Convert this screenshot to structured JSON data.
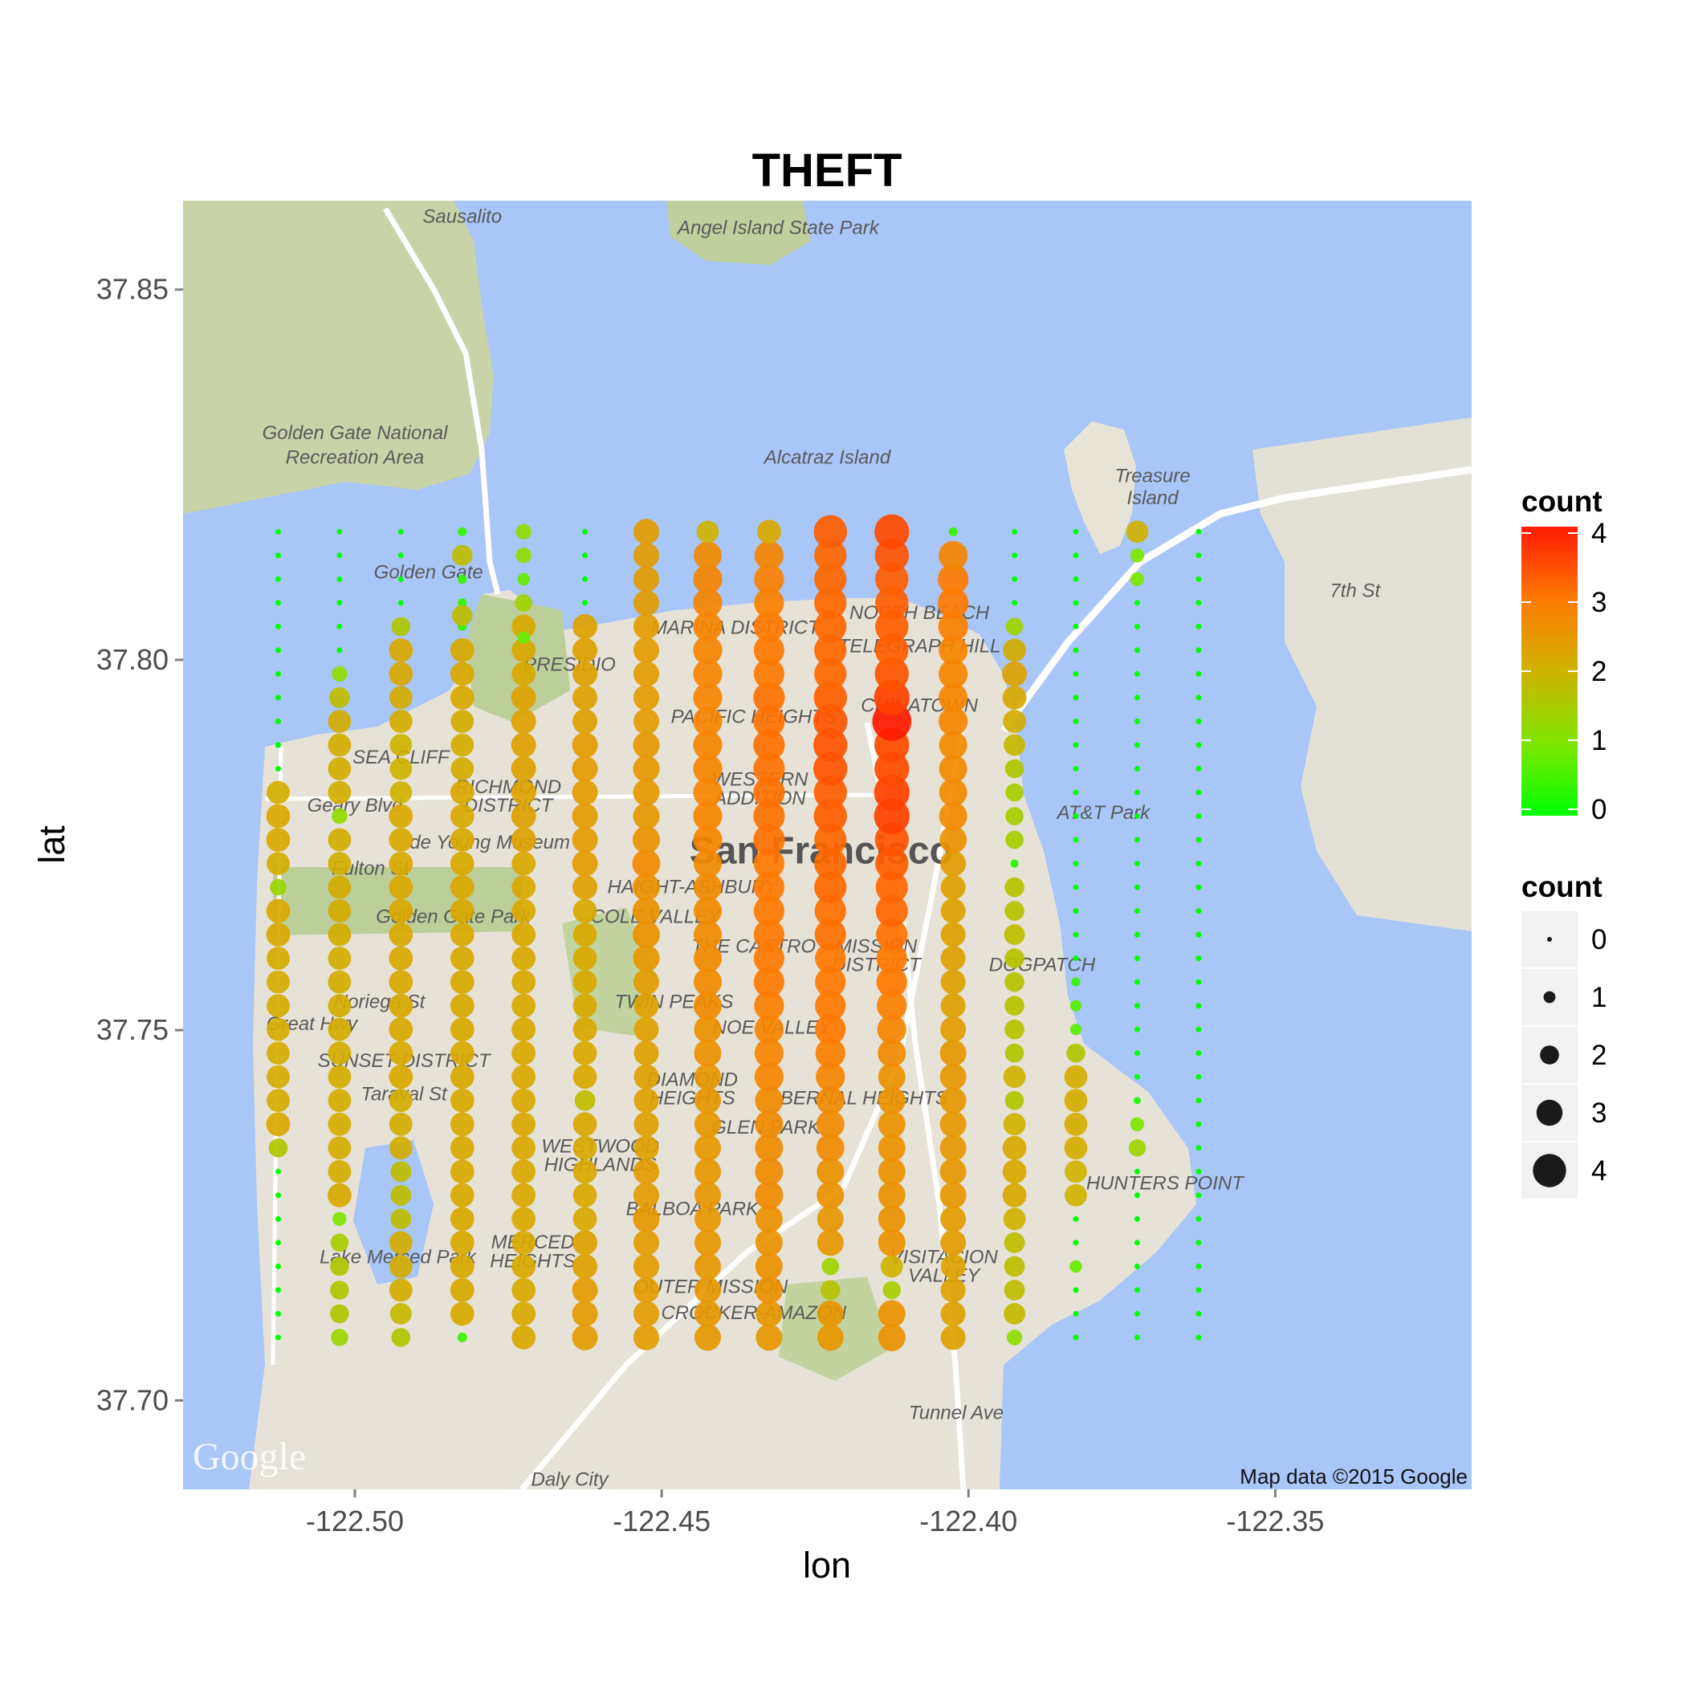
{
  "chart_data": {
    "type": "scatter",
    "title": "THEFT",
    "xlabel": "lon",
    "ylabel": "lat",
    "xlim": [
      -122.528,
      -122.318
    ],
    "ylim": [
      37.688,
      37.862
    ],
    "x_ticks": [
      -122.5,
      -122.45,
      -122.4,
      -122.35
    ],
    "x_tick_labels": [
      "-122.50",
      "-122.45",
      "-122.40",
      "-122.35"
    ],
    "y_ticks": [
      37.7,
      37.75,
      37.8,
      37.85
    ],
    "y_tick_labels": [
      "37.70",
      "37.75",
      "37.80",
      "37.85"
    ],
    "grid_lat_start": 37.7085,
    "grid_lat_step": 0.0032,
    "grid_lat_count": 35,
    "columns": [
      {
        "lon": -122.5125,
        "counts": [
          0,
          0,
          0,
          0,
          0,
          0,
          0,
          0,
          1.6,
          2.2,
          2.1,
          2.1,
          2.1,
          2.1,
          2.1,
          2.1,
          2.1,
          2.2,
          2.2,
          1.3,
          2.1,
          2.2,
          2.2,
          2.1,
          0,
          0,
          0,
          0,
          0,
          0,
          0,
          0,
          0,
          0,
          0
        ]
      },
      {
        "lon": -122.5025,
        "counts": [
          1.4,
          1.6,
          1.6,
          1.6,
          1.5,
          1.0,
          2.2,
          2.1,
          2.1,
          2.1,
          2.1,
          2.1,
          2.1,
          2.1,
          2.1,
          2.1,
          2.1,
          2.1,
          2.1,
          2.1,
          2.1,
          2.1,
          1.2,
          2.1,
          2.1,
          2.1,
          2.1,
          1.8,
          1.2,
          0,
          0,
          0,
          0,
          0,
          0
        ]
      },
      {
        "lon": -122.4925,
        "counts": [
          1.6,
          1.9,
          2.1,
          2.1,
          2.1,
          1.8,
          1.8,
          1.8,
          2.1,
          2.1,
          2.1,
          2.2,
          2.2,
          2.2,
          2.2,
          2.2,
          2.2,
          2.2,
          2.2,
          2.2,
          2.2,
          2.2,
          2.2,
          2.0,
          2.0,
          2.0,
          2.1,
          2.1,
          2.2,
          2.2,
          1.6,
          0,
          0,
          0,
          0
        ]
      },
      {
        "lon": -122.4825,
        "counts": [
          0.5,
          2.2,
          2.2,
          2.2,
          2.2,
          2.2,
          2.2,
          2.2,
          2.2,
          2.2,
          2.2,
          2.2,
          2.2,
          2.2,
          2.2,
          2.2,
          2.2,
          2.2,
          2.2,
          2.2,
          2.2,
          2.2,
          2.2,
          2.2,
          2.1,
          2.1,
          2.1,
          2.2,
          2.2,
          2.2,
          0.4,
          0.4,
          0.4,
          1.8,
          0.4
        ]
      },
      {
        "lon": -122.4725,
        "counts": [
          2.2,
          2.2,
          2.2,
          2.2,
          2.2,
          2.2,
          2.2,
          2.2,
          2.2,
          2.2,
          2.2,
          2.2,
          2.2,
          2.2,
          2.2,
          2.2,
          2.2,
          2.2,
          2.2,
          2.2,
          2.2,
          2.3,
          2.3,
          2.3,
          2.3,
          2.3,
          2.3,
          2.3,
          2.2,
          2.2,
          2.2,
          1.4,
          0.8,
          1.2,
          1.2
        ]
      },
      {
        "lon": -122.4625,
        "counts": [
          2.4,
          2.4,
          2.4,
          2.3,
          2.3,
          2.2,
          2.2,
          2.2,
          2.2,
          2.2,
          1.8,
          2.2,
          2.2,
          2.2,
          2.2,
          2.2,
          2.2,
          2.2,
          2.2,
          2.3,
          2.4,
          2.4,
          2.4,
          2.4,
          2.4,
          2.4,
          2.3,
          2.3,
          2.3,
          2.3,
          2.3,
          0,
          0,
          0,
          0
        ]
      },
      {
        "lon": -122.4525,
        "counts": [
          2.4,
          2.4,
          2.4,
          2.4,
          2.4,
          2.5,
          2.4,
          2.4,
          2.3,
          2.3,
          2.3,
          2.3,
          2.3,
          2.3,
          2.3,
          2.4,
          2.5,
          2.6,
          2.6,
          2.6,
          2.7,
          2.6,
          2.5,
          2.5,
          2.5,
          2.5,
          2.4,
          2.4,
          2.4,
          2.4,
          2.4,
          2.4,
          2.4,
          2.4,
          2.4
        ]
      },
      {
        "lon": -122.4425,
        "counts": [
          2.5,
          2.5,
          2.5,
          2.5,
          2.5,
          2.5,
          2.5,
          2.5,
          2.5,
          2.5,
          2.5,
          2.5,
          2.6,
          2.6,
          2.7,
          2.7,
          2.7,
          2.7,
          2.7,
          2.7,
          2.7,
          2.8,
          2.8,
          2.8,
          2.8,
          2.8,
          2.8,
          2.8,
          2.8,
          2.8,
          2.8,
          2.8,
          2.8,
          2.7,
          2.0
        ]
      },
      {
        "lon": -122.4325,
        "counts": [
          2.5,
          2.5,
          2.6,
          2.6,
          2.6,
          2.6,
          2.7,
          2.7,
          2.7,
          2.7,
          2.7,
          2.8,
          2.8,
          2.8,
          2.9,
          3.0,
          3.0,
          3.0,
          3.0,
          3.0,
          3.0,
          3.1,
          3.1,
          3.1,
          3.1,
          3.1,
          3.1,
          3.1,
          3.0,
          3.0,
          3.0,
          2.9,
          2.9,
          2.8,
          2.2
        ]
      },
      {
        "lon": -122.4225,
        "counts": [
          2.5,
          2.5,
          1.7,
          1.4,
          2.5,
          2.5,
          2.6,
          2.6,
          2.7,
          2.7,
          2.7,
          2.8,
          2.9,
          3.0,
          3.0,
          3.0,
          3.0,
          3.1,
          3.1,
          3.2,
          3.2,
          3.2,
          3.3,
          3.3,
          3.4,
          3.4,
          3.4,
          3.3,
          3.2,
          3.2,
          3.2,
          3.2,
          3.2,
          3.2,
          3.3
        ]
      },
      {
        "lon": -122.4125,
        "counts": [
          2.6,
          2.6,
          1.5,
          2.0,
          2.6,
          2.6,
          2.6,
          2.6,
          2.6,
          2.6,
          2.6,
          2.6,
          2.7,
          2.8,
          2.9,
          3.0,
          3.0,
          3.1,
          3.2,
          3.2,
          3.3,
          3.4,
          3.6,
          3.6,
          3.5,
          3.5,
          4.0,
          3.6,
          3.4,
          3.3,
          3.3,
          3.3,
          3.3,
          3.4,
          3.5
        ]
      },
      {
        "lon": -122.4025,
        "counts": [
          2.3,
          2.3,
          2.3,
          2.3,
          2.4,
          2.4,
          2.5,
          2.5,
          2.5,
          2.5,
          2.5,
          2.5,
          2.5,
          2.4,
          2.3,
          2.3,
          2.3,
          2.3,
          2.3,
          2.3,
          2.4,
          2.6,
          2.7,
          2.7,
          2.7,
          2.7,
          2.8,
          2.8,
          2.8,
          2.8,
          2.9,
          3.0,
          3.0,
          2.8,
          0.4
        ]
      },
      {
        "lon": -122.3925,
        "counts": [
          1.2,
          1.9,
          1.8,
          1.8,
          1.8,
          2.0,
          2.2,
          2.2,
          2.2,
          2.0,
          1.6,
          2.0,
          1.6,
          1.7,
          1.7,
          1.7,
          1.7,
          1.8,
          1.7,
          1.7,
          0.3,
          1.5,
          1.5,
          1.5,
          1.6,
          1.9,
          2.1,
          2.2,
          2.3,
          2.1,
          1.4,
          0,
          0,
          0,
          0
        ]
      },
      {
        "lon": -122.3825,
        "counts": [
          0,
          0,
          0,
          0.8,
          0,
          0,
          2.0,
          2.0,
          2.1,
          2.1,
          2.1,
          2.1,
          1.6,
          0.7,
          0.7,
          0.4,
          0,
          0,
          0,
          0,
          0,
          0,
          0,
          0,
          0,
          0,
          0,
          0,
          0,
          0,
          0,
          0,
          0,
          0,
          0
        ]
      },
      {
        "lon": -122.3725,
        "counts": [
          0,
          0,
          0,
          0,
          0,
          0,
          0,
          0,
          1.4,
          1.0,
          0.2,
          0,
          0,
          0,
          0,
          0,
          0,
          0,
          0,
          0,
          0,
          0,
          0,
          0,
          0,
          0,
          0,
          0,
          0,
          0,
          0,
          0,
          1.0,
          1.0,
          2.0
        ]
      },
      {
        "lon": -122.3625,
        "counts": [
          0,
          0,
          0,
          0,
          0,
          0,
          0,
          0,
          0,
          0,
          0,
          0,
          0,
          0,
          0,
          0,
          0,
          0,
          0,
          0,
          0,
          0,
          0,
          0,
          0,
          0,
          0,
          0,
          0,
          0,
          0,
          0,
          0,
          0,
          0
        ]
      }
    ],
    "extra_points": [
      {
        "lon": -122.4825,
        "lat": 37.806,
        "count": 1.8
      },
      {
        "lon": -122.4725,
        "lat": 37.803,
        "count": 0.8
      }
    ],
    "color_scale": {
      "low": "#00ff00",
      "high": "#ff0000",
      "limits": [
        0,
        4
      ]
    },
    "size_breaks": [
      0,
      1,
      2,
      3,
      4
    ],
    "legend": {
      "color_title": "count",
      "size_title": "count",
      "color_labels": [
        "4",
        "3",
        "2",
        "1",
        "0"
      ],
      "size_labels": [
        "0",
        "1",
        "2",
        "3",
        "4"
      ],
      "position": "right"
    },
    "grid": false
  },
  "map": {
    "attribution": "Map data ©2015 Google",
    "logo": "Google",
    "labels": [
      {
        "text": "Sausalito",
        "lon": -122.4825,
        "lat": 37.859
      },
      {
        "text": "Angel Island State Park",
        "lon": -122.431,
        "lat": 37.8575
      },
      {
        "text": "Golden Gate National",
        "lon": -122.5,
        "lat": 37.8298
      },
      {
        "text": "Recreation Area",
        "lon": -122.5,
        "lat": 37.8265
      },
      {
        "text": "Alcatraz Island",
        "lon": -122.423,
        "lat": 37.8265
      },
      {
        "text": "Treasure",
        "lon": -122.37,
        "lat": 37.824
      },
      {
        "text": "Island",
        "lon": -122.37,
        "lat": 37.821
      },
      {
        "text": "Golden Gate",
        "lon": -122.488,
        "lat": 37.811
      },
      {
        "text": "MARINA DISTRICT",
        "lon": -122.438,
        "lat": 37.8035
      },
      {
        "text": "PRESIDIO",
        "lon": -122.465,
        "lat": 37.7985
      },
      {
        "text": "PACIFIC HEIGHTS",
        "lon": -122.435,
        "lat": 37.7915
      },
      {
        "text": "NORTH BEACH",
        "lon": -122.408,
        "lat": 37.8055
      },
      {
        "text": "TELEGRAPH HILL",
        "lon": -122.408,
        "lat": 37.801
      },
      {
        "text": "CHINATOWN",
        "lon": -122.408,
        "lat": 37.793
      },
      {
        "text": "SEA CLIFF",
        "lon": -122.4925,
        "lat": 37.786
      },
      {
        "text": "RICHMOND",
        "lon": -122.475,
        "lat": 37.782
      },
      {
        "text": "DISTRICT",
        "lon": -122.475,
        "lat": 37.7795
      },
      {
        "text": "WESTERN",
        "lon": -122.434,
        "lat": 37.783
      },
      {
        "text": "ADDITION",
        "lon": -122.434,
        "lat": 37.7805
      },
      {
        "text": "Geary Blvd",
        "lon": -122.5,
        "lat": 37.7795
      },
      {
        "text": "de Young Museum",
        "lon": -122.478,
        "lat": 37.7745
      },
      {
        "text": "Fulton St",
        "lon": -122.4975,
        "lat": 37.771
      },
      {
        "text": "Golden Gate Park",
        "lon": -122.484,
        "lat": 37.7645
      },
      {
        "text": "HAIGHT-ASHBURY",
        "lon": -122.445,
        "lat": 37.7685
      },
      {
        "text": "COLE VALLEY",
        "lon": -122.451,
        "lat": 37.7645
      },
      {
        "text": "THE CASTRO",
        "lon": -122.435,
        "lat": 37.7605
      },
      {
        "text": "MISSION",
        "lon": -122.415,
        "lat": 37.7605
      },
      {
        "text": "DISTRICT",
        "lon": -122.415,
        "lat": 37.758
      },
      {
        "text": "DOGPATCH",
        "lon": -122.388,
        "lat": 37.758
      },
      {
        "text": "TWIN PEAKS",
        "lon": -122.448,
        "lat": 37.753
      },
      {
        "text": "NOE VALLEY",
        "lon": -122.432,
        "lat": 37.7495
      },
      {
        "text": "Noriega St",
        "lon": -122.496,
        "lat": 37.753
      },
      {
        "text": "SUNSET DISTRICT",
        "lon": -122.492,
        "lat": 37.745
      },
      {
        "text": "Taraval St",
        "lon": -122.492,
        "lat": 37.7405
      },
      {
        "text": "DIAMOND",
        "lon": -122.445,
        "lat": 37.7425
      },
      {
        "text": "HEIGHTS",
        "lon": -122.445,
        "lat": 37.74
      },
      {
        "text": "BERNAL HEIGHTS",
        "lon": -122.417,
        "lat": 37.74
      },
      {
        "text": "GLEN PARK",
        "lon": -122.433,
        "lat": 37.736
      },
      {
        "text": "WESTWOOD",
        "lon": -122.46,
        "lat": 37.7335
      },
      {
        "text": "HIGHLANDS",
        "lon": -122.46,
        "lat": 37.731
      },
      {
        "text": "HUNTERS POINT",
        "lon": -122.368,
        "lat": 37.7285
      },
      {
        "text": "BALBOA PARK",
        "lon": -122.445,
        "lat": 37.725
      },
      {
        "text": "MERCED",
        "lon": -122.471,
        "lat": 37.7205
      },
      {
        "text": "HEIGHTS",
        "lon": -122.471,
        "lat": 37.718
      },
      {
        "text": "Lake Merced Park",
        "lon": -122.493,
        "lat": 37.7185
      },
      {
        "text": "VISITACION",
        "lon": -122.404,
        "lat": 37.7185
      },
      {
        "text": "VALLEY",
        "lon": -122.404,
        "lat": 37.716
      },
      {
        "text": "OUTER MISSION",
        "lon": -122.442,
        "lat": 37.7145
      },
      {
        "text": "CROCKER-AMAZON",
        "lon": -122.435,
        "lat": 37.711
      },
      {
        "text": "AT&T Park",
        "lon": -122.378,
        "lat": 37.7785
      },
      {
        "text": "San Francisco",
        "lon": -122.424,
        "lat": 37.7725
      },
      {
        "text": "7th St",
        "lon": -122.337,
        "lat": 37.8085
      },
      {
        "text": "Great Hwy",
        "lon": -122.507,
        "lat": 37.75
      },
      {
        "text": "Tunnel Ave",
        "lon": -122.402,
        "lat": 37.6975
      },
      {
        "text": "Daly City",
        "lon": -122.465,
        "lat": 37.6885
      }
    ]
  }
}
